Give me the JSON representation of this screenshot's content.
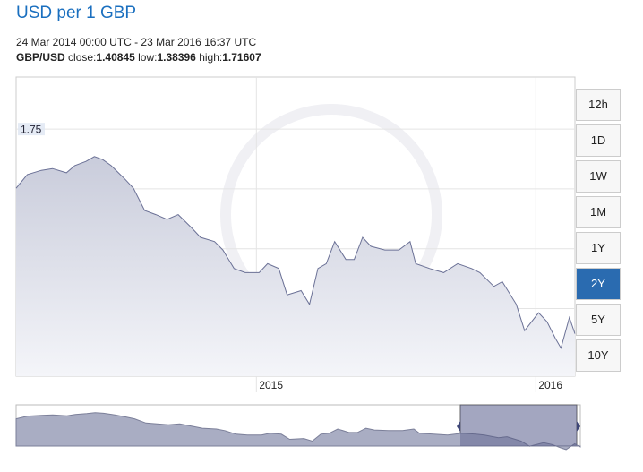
{
  "header": {
    "title": "USD per 1 GBP",
    "range": "24 Mar 2014 00:00 UTC - 23 Mar 2016 16:37 UTC",
    "pair": "GBP/USD",
    "close_label": "close:",
    "close": 1.40845,
    "low_label": "low:",
    "low": 1.38396,
    "high_label": "high:",
    "high": 1.71607
  },
  "range_buttons": [
    "12h",
    "1D",
    "1W",
    "1M",
    "1Y",
    "2Y",
    "5Y",
    "10Y"
  ],
  "selected_range": "2Y",
  "chart_data": {
    "type": "area",
    "color": "#6b7196",
    "x": [
      2014.14,
      2014.18,
      2014.23,
      2014.27,
      2014.32,
      2014.35,
      2014.39,
      2014.42,
      2014.45,
      2014.48,
      2014.53,
      2014.56,
      2014.6,
      2014.64,
      2014.68,
      2014.72,
      2014.77,
      2014.8,
      2014.85,
      2014.88,
      2014.92,
      2014.96,
      2015.01,
      2015.04,
      2015.08,
      2015.11,
      2015.16,
      2015.19,
      2015.22,
      2015.25,
      2015.28,
      2015.32,
      2015.35,
      2015.38,
      2015.41,
      2015.46,
      2015.51,
      2015.55,
      2015.57,
      2015.62,
      2015.67,
      2015.72,
      2015.77,
      2015.8,
      2015.85,
      2015.88,
      2015.93,
      2015.96,
      2016.01,
      2016.04,
      2016.07,
      2016.09,
      2016.12,
      2016.14
    ],
    "values": [
      1.651,
      1.674,
      1.681,
      1.684,
      1.677,
      1.689,
      1.696,
      1.704,
      1.699,
      1.689,
      1.666,
      1.651,
      1.614,
      1.607,
      1.599,
      1.607,
      1.584,
      1.569,
      1.562,
      1.548,
      1.517,
      1.51,
      1.51,
      1.525,
      1.517,
      1.473,
      1.48,
      1.457,
      1.517,
      1.525,
      1.562,
      1.532,
      1.532,
      1.569,
      1.554,
      1.548,
      1.548,
      1.562,
      1.525,
      1.517,
      1.51,
      1.525,
      1.517,
      1.51,
      1.487,
      1.495,
      1.457,
      1.413,
      1.443,
      1.428,
      1.4,
      1.384,
      1.435,
      1.408
    ],
    "xlim": [
      2014.14,
      2016.14
    ],
    "xticks": [
      2015,
      2016
    ],
    "ylim": [
      1.337,
      1.837
    ],
    "yticks": [
      1.35,
      1.45,
      1.55,
      1.65,
      1.75
    ],
    "grid": true
  }
}
